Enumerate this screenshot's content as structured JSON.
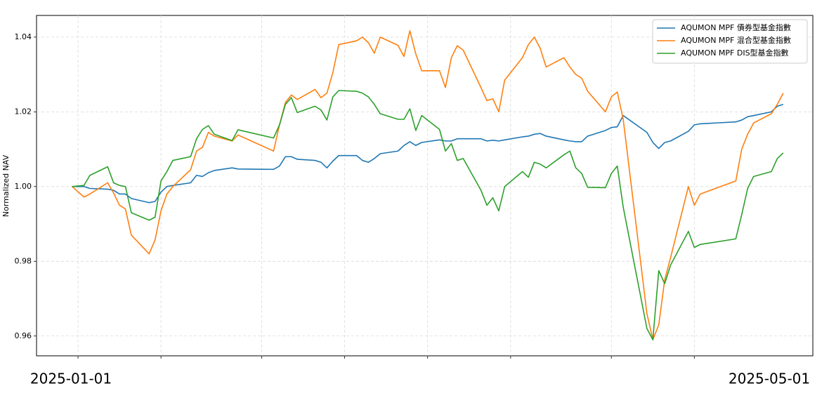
{
  "chart_data": {
    "type": "line",
    "y_label": "Normalized NAV",
    "x": [
      "2024-12-31",
      "2025-01-02",
      "2025-01-03",
      "2025-01-06",
      "2025-01-07",
      "2025-01-08",
      "2025-01-09",
      "2025-01-10",
      "2025-01-13",
      "2025-01-14",
      "2025-01-15",
      "2025-01-16",
      "2025-01-17",
      "2025-01-20",
      "2025-01-21",
      "2025-01-22",
      "2025-01-23",
      "2025-01-24",
      "2025-01-27",
      "2025-01-28",
      "2025-02-03",
      "2025-02-04",
      "2025-02-05",
      "2025-02-06",
      "2025-02-07",
      "2025-02-10",
      "2025-02-11",
      "2025-02-12",
      "2025-02-13",
      "2025-02-14",
      "2025-02-17",
      "2025-02-18",
      "2025-02-19",
      "2025-02-20",
      "2025-02-21",
      "2025-02-24",
      "2025-02-25",
      "2025-02-26",
      "2025-02-27",
      "2025-02-28",
      "2025-03-03",
      "2025-03-04",
      "2025-03-05",
      "2025-03-06",
      "2025-03-07",
      "2025-03-10",
      "2025-03-11",
      "2025-03-12",
      "2025-03-13",
      "2025-03-14",
      "2025-03-17",
      "2025-03-18",
      "2025-03-19",
      "2025-03-20",
      "2025-03-21",
      "2025-03-24",
      "2025-03-25",
      "2025-03-26",
      "2025-03-27",
      "2025-03-28",
      "2025-03-31",
      "2025-04-01",
      "2025-04-02",
      "2025-04-03",
      "2025-04-07",
      "2025-04-08",
      "2025-04-09",
      "2025-04-10",
      "2025-04-11",
      "2025-04-14",
      "2025-04-15",
      "2025-04-16",
      "2025-04-22",
      "2025-04-23",
      "2025-04-24",
      "2025-04-25",
      "2025-04-28",
      "2025-04-29",
      "2025-04-30"
    ],
    "series": [
      {
        "name": "AQUMON MPF 債券型基金指數",
        "color": "#1f77b4",
        "values": [
          1.0,
          1.0,
          0.9995,
          0.9993,
          0.999,
          0.998,
          0.998,
          0.9968,
          0.9957,
          0.996,
          0.9985,
          1.0,
          1.0003,
          1.001,
          1.003,
          1.0027,
          1.0037,
          1.0043,
          1.005,
          1.0047,
          1.0046,
          1.0055,
          1.008,
          1.008,
          1.0073,
          1.007,
          1.0065,
          1.005,
          1.0068,
          1.0083,
          1.0083,
          1.007,
          1.0065,
          1.0075,
          1.0088,
          1.0095,
          1.011,
          1.012,
          1.011,
          1.0118,
          1.0125,
          1.0122,
          1.0122,
          1.0128,
          1.0128,
          1.0128,
          1.0122,
          1.0124,
          1.0122,
          1.0125,
          1.0133,
          1.0135,
          1.014,
          1.0142,
          1.0135,
          1.0125,
          1.0122,
          1.012,
          1.012,
          1.0135,
          1.015,
          1.0158,
          1.016,
          1.019,
          1.0145,
          1.0118,
          1.0102,
          1.0118,
          1.0122,
          1.0148,
          1.0165,
          1.0168,
          1.0173,
          1.0178,
          1.0187,
          1.019,
          1.02,
          1.0215,
          1.022
        ]
      },
      {
        "name": "AQUMON MPF 混合型基金指數",
        "color": "#ff7f0e",
        "values": [
          1.0,
          0.9972,
          0.998,
          1.001,
          0.9983,
          0.995,
          0.994,
          0.987,
          0.982,
          0.9857,
          0.9935,
          0.998,
          1.0,
          1.0045,
          1.0095,
          1.0105,
          1.0145,
          1.0135,
          1.0122,
          1.0138,
          1.0095,
          1.0165,
          1.0225,
          1.0245,
          1.0233,
          1.026,
          1.0238,
          1.025,
          1.0305,
          1.038,
          1.039,
          1.04,
          1.0385,
          1.0357,
          1.04,
          1.0378,
          1.0348,
          1.0417,
          1.0355,
          1.031,
          1.031,
          1.0265,
          1.0345,
          1.0377,
          1.0365,
          1.0265,
          1.023,
          1.0235,
          1.02,
          1.0285,
          1.0345,
          1.038,
          1.04,
          1.037,
          1.032,
          1.0345,
          1.032,
          1.03,
          1.029,
          1.0255,
          1.02,
          1.024,
          1.0253,
          1.018,
          0.966,
          0.959,
          0.963,
          0.975,
          0.981,
          1.0,
          0.995,
          0.998,
          1.0015,
          1.01,
          1.014,
          1.017,
          1.0195,
          1.022,
          1.025
        ]
      },
      {
        "name": "AQUMON MPF DIS型基金指數",
        "color": "#2ca02c",
        "values": [
          1.0,
          1.0003,
          1.003,
          1.0053,
          1.001,
          1.0003,
          1.0,
          0.993,
          0.991,
          0.9918,
          1.0015,
          1.004,
          1.007,
          1.008,
          1.0128,
          1.0153,
          1.0163,
          1.014,
          1.0123,
          1.0152,
          1.013,
          1.0165,
          1.022,
          1.0238,
          1.0198,
          1.0215,
          1.0205,
          1.0178,
          1.024,
          1.0257,
          1.0255,
          1.025,
          1.024,
          1.022,
          1.0195,
          1.018,
          1.018,
          1.0208,
          1.015,
          1.019,
          1.0153,
          1.0095,
          1.0115,
          1.007,
          1.0075,
          0.999,
          0.995,
          0.997,
          0.9935,
          1.0,
          1.004,
          1.0025,
          1.0065,
          1.006,
          1.005,
          1.0085,
          1.0095,
          1.005,
          1.0035,
          0.9998,
          0.9997,
          1.0035,
          1.0055,
          0.9945,
          0.962,
          0.959,
          0.9775,
          0.974,
          0.979,
          0.988,
          0.9837,
          0.9845,
          0.986,
          0.9925,
          0.9995,
          1.0027,
          1.004,
          1.0075,
          1.009
        ]
      }
    ],
    "xlim": [
      "2024-12-25",
      "2025-05-05"
    ],
    "xticks": [
      "2025-01-01",
      "2025-01-15",
      "2025-02-01",
      "2025-02-15",
      "2025-03-01",
      "2025-03-15",
      "2025-04-01",
      "2025-04-15"
    ],
    "x_edge_labels": [
      "2025-01-01",
      "2025-05-01"
    ],
    "ylim": [
      0.9547,
      1.0458
    ],
    "yticks": [
      0.96,
      0.98,
      {
        "value": 1.0,
        "label": "1.00"
      },
      1.02,
      1.04
    ],
    "grid": true,
    "legend": "upper right"
  }
}
